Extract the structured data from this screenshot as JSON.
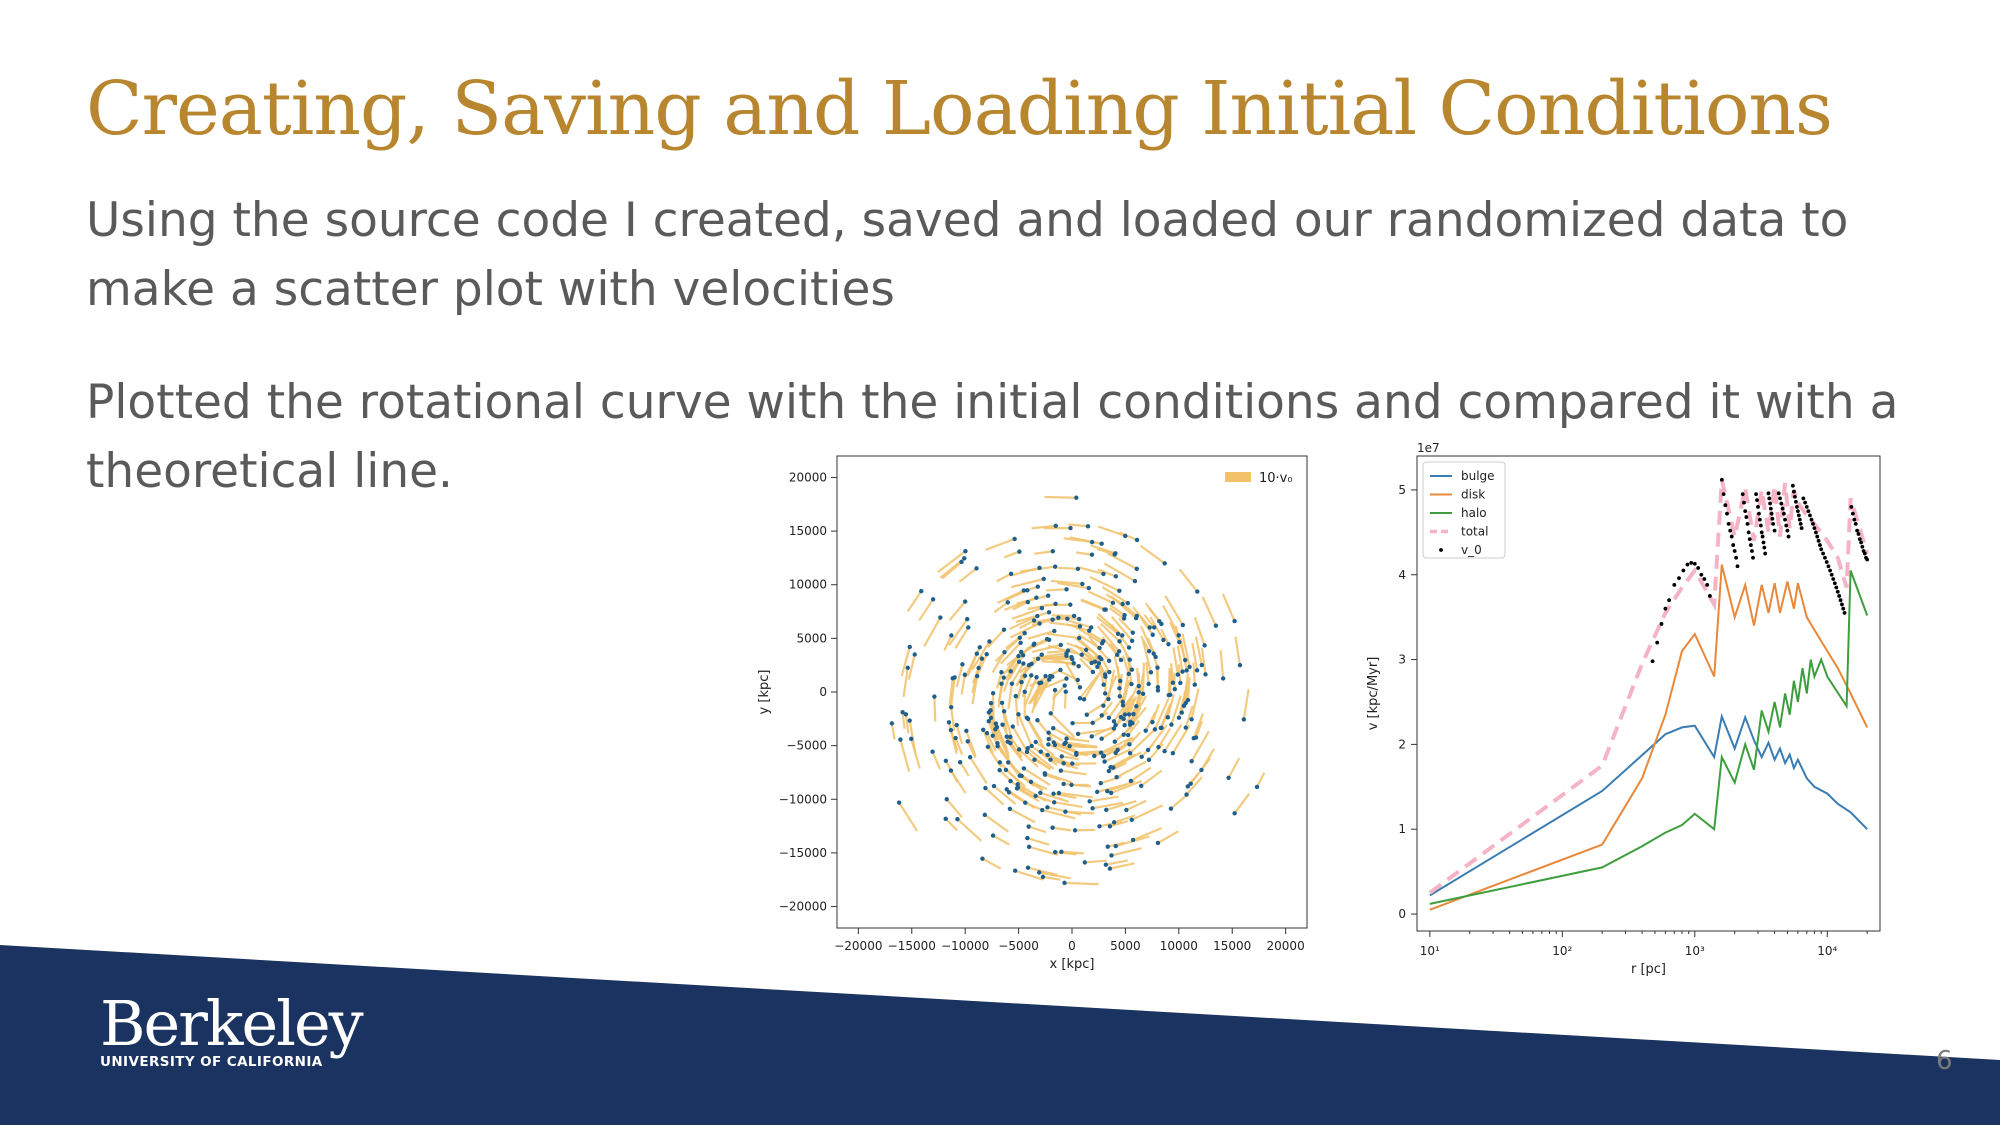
{
  "slide": {
    "title": "Creating, Saving and Loading Initial Conditions",
    "paragraph_1": "Using the source code I created, saved and loaded our randomized data to make a scatter plot with velocities",
    "paragraph_2": "Plotted the rotational curve with the initial conditions and compared it with a theoretical line.",
    "page_number": "6",
    "logo": {
      "wordmark": "Berkeley",
      "subtitle": "UNIVERSITY OF CALIFORNIA"
    },
    "colors": {
      "title": "#B8862F",
      "body_text": "#5a5a5a",
      "footer_band": "#1B3360"
    }
  },
  "chart_data": [
    {
      "type": "scatter",
      "title": "",
      "xlabel": "x [kpc]",
      "ylabel": "y [kpc]",
      "xlim": [
        -22000,
        22000
      ],
      "ylim": [
        -22000,
        22000
      ],
      "xticks": [
        -20000,
        -15000,
        -10000,
        -5000,
        0,
        5000,
        10000,
        15000,
        20000
      ],
      "yticks": [
        -20000,
        -15000,
        -10000,
        -5000,
        0,
        5000,
        10000,
        15000,
        20000
      ],
      "xtick_labels": [
        "−20000",
        "−15000",
        "−10000",
        "−5000",
        "0",
        "5000",
        "10000",
        "15000",
        "20000"
      ],
      "ytick_labels": [
        "−20000",
        "−15000",
        "−10000",
        "−5000",
        "0",
        "5000",
        "10000",
        "15000",
        "20000"
      ],
      "legend": {
        "entries": [
          "10·v₀"
        ],
        "placement": "top-right"
      },
      "grid": false,
      "marker_color": "#1f5f8b",
      "vector_color": "#F2C26B",
      "distribution": "randomized disk of particles, radius ~20000 kpc, denser toward the center, with tangential velocity vectors"
    },
    {
      "type": "line",
      "title": "",
      "xlabel": "r [pc]",
      "ylabel": "v [kpc/Myr]",
      "xscale": "log",
      "xlim": [
        8,
        25000
      ],
      "ylim": [
        -0.2,
        5.4
      ],
      "y_offset_label": "1e7",
      "xticks": [
        10,
        100,
        1000,
        10000
      ],
      "xtick_labels": [
        "10¹",
        "10²",
        "10³",
        "10⁴"
      ],
      "yticks": [
        0,
        1,
        2,
        3,
        4,
        5
      ],
      "ytick_labels": [
        "0",
        "1",
        "2",
        "3",
        "4",
        "5"
      ],
      "legend": {
        "placement": "top-left"
      },
      "grid": false,
      "series": [
        {
          "name": "bulge",
          "color": "#3A7DB3",
          "x": [
            10,
            200,
            600,
            800,
            1000,
            1400,
            1600,
            2000,
            2400,
            2800,
            3200,
            3600,
            4000,
            4400,
            4800,
            5200,
            5600,
            6000,
            7000,
            8000,
            10000,
            12000,
            15000,
            20000
          ],
          "y": [
            0.22,
            1.45,
            2.12,
            2.2,
            2.22,
            1.85,
            2.33,
            1.95,
            2.32,
            2.05,
            1.85,
            2.02,
            1.82,
            1.95,
            1.78,
            1.88,
            1.72,
            1.82,
            1.6,
            1.5,
            1.42,
            1.3,
            1.2,
            1.0
          ]
        },
        {
          "name": "disk",
          "color": "#E8883A",
          "x": [
            10,
            200,
            400,
            600,
            800,
            1000,
            1400,
            1600,
            2000,
            2400,
            2800,
            3200,
            3600,
            4000,
            4400,
            5000,
            5600,
            6000,
            7000,
            8000,
            10000,
            12000,
            15000,
            20000
          ],
          "y": [
            0.05,
            0.82,
            1.6,
            2.35,
            3.1,
            3.3,
            2.8,
            4.12,
            3.5,
            3.88,
            3.4,
            3.88,
            3.55,
            3.9,
            3.55,
            3.92,
            3.6,
            3.9,
            3.5,
            3.35,
            3.1,
            2.9,
            2.6,
            2.2
          ]
        },
        {
          "name": "halo",
          "color": "#3E9E3E",
          "x": [
            10,
            200,
            400,
            600,
            800,
            1000,
            1400,
            1600,
            2000,
            2400,
            2800,
            3200,
            3600,
            4000,
            4400,
            4800,
            5200,
            5600,
            6000,
            6500,
            7000,
            7500,
            8000,
            9000,
            10000,
            14000,
            15000,
            20000
          ],
          "y": [
            0.12,
            0.55,
            0.8,
            0.96,
            1.05,
            1.18,
            1.0,
            1.85,
            1.55,
            2.0,
            1.7,
            2.4,
            2.15,
            2.5,
            2.2,
            2.6,
            2.35,
            2.75,
            2.5,
            2.9,
            2.6,
            3.0,
            2.8,
            3.0,
            2.8,
            2.45,
            4.05,
            3.52
          ]
        },
        {
          "name": "total",
          "color": "#F4B4C6",
          "dash": true,
          "x": [
            10,
            200,
            400,
            600,
            800,
            1000,
            1400,
            1600,
            2000,
            2400,
            2800,
            3200,
            3600,
            4000,
            4400,
            4800,
            5200,
            5600,
            6000,
            7000,
            8000,
            10000,
            12000,
            14000,
            15000,
            20000
          ],
          "y": [
            0.25,
            1.75,
            2.95,
            3.55,
            3.85,
            4.05,
            3.65,
            5.12,
            4.45,
            5.02,
            4.4,
            5.0,
            4.5,
            5.05,
            4.45,
            5.08,
            4.55,
            5.0,
            4.85,
            4.7,
            4.6,
            4.4,
            4.2,
            3.85,
            4.9,
            4.25
          ]
        },
        {
          "name": "v_0",
          "color": "#000000",
          "marker": "dot",
          "x": [
            480,
            520,
            560,
            600,
            640,
            700,
            760,
            820,
            880,
            940,
            1000,
            1060,
            1120,
            1180,
            1240,
            1300,
            1600,
            1650,
            1700,
            1750,
            1800,
            1850,
            1900,
            1950,
            2000,
            2050,
            2100,
            2300,
            2350,
            2400,
            2450,
            2500,
            2550,
            2600,
            2650,
            2700,
            2750,
            2900,
            2950,
            3000,
            3050,
            3100,
            3150,
            3200,
            3250,
            3300,
            3350,
            3400,
            3600,
            3650,
            3700,
            3750,
            3800,
            3850,
            3900,
            4000,
            4300,
            4400,
            4500,
            4600,
            4700,
            4800,
            4900,
            5000,
            5100,
            5500,
            5600,
            5700,
            5800,
            5900,
            6000,
            6100,
            6200,
            6300,
            6400,
            6600,
            6800,
            7000,
            7200,
            7400,
            7600,
            7800,
            8000,
            8200,
            8400,
            8600,
            8800,
            9000,
            9300,
            9600,
            9900,
            10200,
            10500,
            10800,
            11100,
            11400,
            11700,
            12000,
            12300,
            12600,
            12900,
            13200,
            13500,
            15200,
            15600,
            16000,
            16400,
            16800,
            17200,
            17600,
            18000,
            18400,
            18800,
            19200,
            19600,
            20000
          ],
          "y": [
            2.98,
            3.2,
            3.42,
            3.6,
            3.7,
            3.88,
            3.96,
            4.05,
            4.12,
            4.14,
            4.13,
            4.08,
            4.0,
            3.95,
            3.88,
            3.75,
            5.12,
            4.95,
            4.82,
            4.72,
            4.6,
            4.52,
            4.45,
            4.35,
            4.28,
            4.2,
            4.1,
            4.95,
            4.85,
            4.75,
            4.68,
            4.6,
            4.5,
            4.42,
            4.35,
            4.28,
            4.2,
            4.95,
            4.88,
            4.8,
            4.72,
            4.65,
            4.58,
            4.5,
            4.45,
            4.38,
            4.32,
            4.25,
            4.96,
            4.9,
            4.84,
            4.78,
            4.72,
            4.66,
            4.6,
            4.52,
            4.96,
            4.9,
            4.84,
            4.78,
            4.72,
            4.65,
            4.58,
            4.52,
            4.45,
            5.05,
            4.98,
            4.92,
            4.86,
            4.8,
            4.75,
            4.7,
            4.65,
            4.6,
            4.55,
            4.9,
            4.85,
            4.8,
            4.75,
            4.7,
            4.65,
            4.6,
            4.55,
            4.5,
            4.45,
            4.4,
            4.35,
            4.3,
            4.25,
            4.2,
            4.15,
            4.1,
            4.05,
            4.0,
            3.95,
            3.9,
            3.85,
            3.8,
            3.75,
            3.7,
            3.65,
            3.6,
            3.55,
            4.8,
            4.72,
            4.65,
            4.6,
            4.52,
            4.48,
            4.42,
            4.38,
            4.33,
            4.28,
            4.25,
            4.2,
            4.18
          ]
        }
      ]
    }
  ]
}
